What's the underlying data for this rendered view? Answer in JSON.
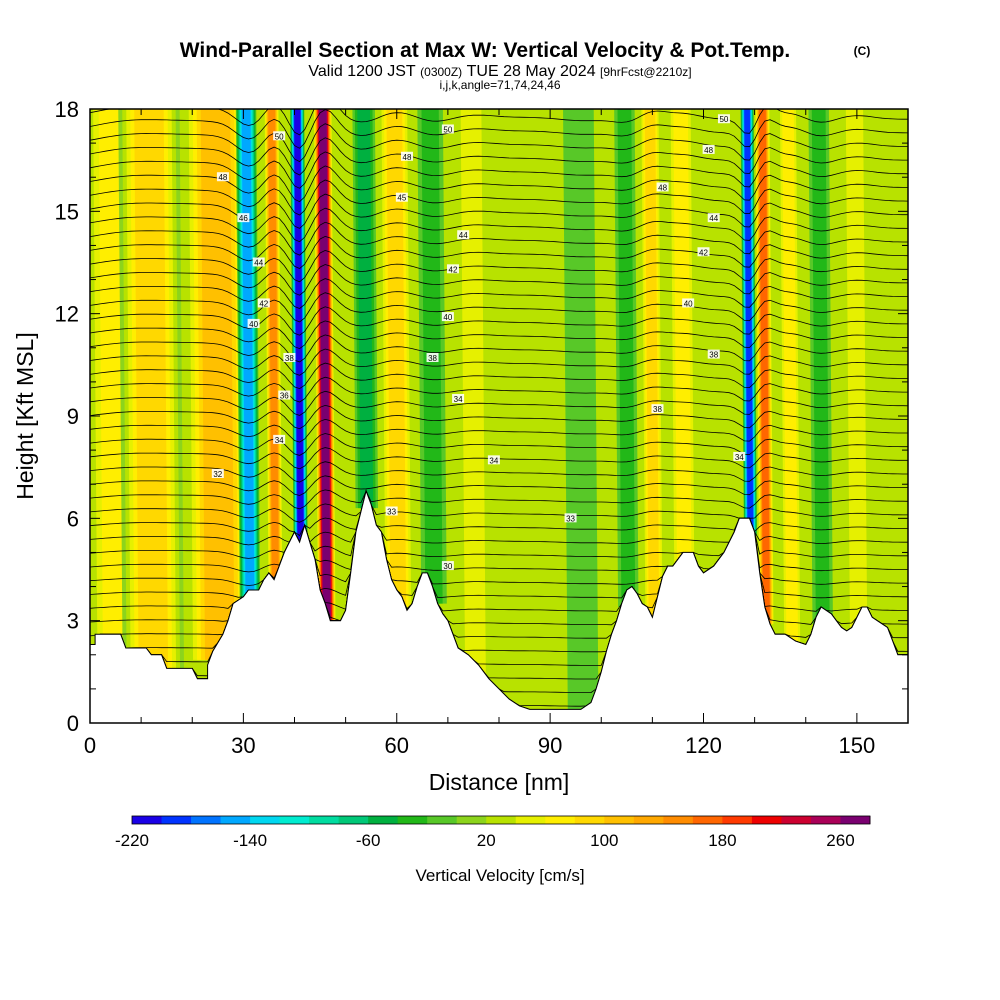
{
  "title": {
    "main": "Wind-Parallel Section at Max W: Vertical Velocity & Pot.Temp.",
    "mark": "(C)",
    "valid_prefix": "Valid 1200 JST",
    "valid_utc": "(0300Z)",
    "valid_date": "TUE 28 May 2024",
    "forecast": "[9hrFcst@2210z]",
    "indices": "i,j,k,angle=71,74,24,46"
  },
  "chart_data": {
    "type": "heatmap",
    "xlabel": "Distance [nm]",
    "ylabel": "Height [Kft MSL]",
    "xlim": [
      0,
      160
    ],
    "ylim": [
      0,
      18
    ],
    "x_ticks": [
      0,
      30,
      60,
      90,
      120,
      150
    ],
    "y_ticks": [
      0,
      3,
      6,
      9,
      12,
      15,
      18
    ],
    "colorbar": {
      "title": "Vertical Velocity [cm/s]",
      "min": -220,
      "max": 280,
      "step": 20,
      "labels": [
        -220,
        -140,
        -60,
        20,
        100,
        180,
        260
      ],
      "colors": [
        "#1a00e6",
        "#0033ff",
        "#0073ff",
        "#00a8ff",
        "#00d7f0",
        "#00ecd0",
        "#00dca0",
        "#00c878",
        "#00b040",
        "#22b818",
        "#58c828",
        "#8cd41c",
        "#b8e200",
        "#e6f000",
        "#ffee00",
        "#ffd800",
        "#ffc000",
        "#ffa800",
        "#ff8c00",
        "#ff6600",
        "#ff3a00",
        "#ee0000",
        "#cc0030",
        "#aa0058",
        "#7a0070"
      ]
    },
    "vertical_velocity_features": [
      {
        "x": 5,
        "width": 5,
        "value": 60
      },
      {
        "x": 12,
        "width": 6,
        "value": 90
      },
      {
        "x": 25,
        "width": 6,
        "value": 100
      },
      {
        "x": 31,
        "width": 2.0,
        "value": -150
      },
      {
        "x": 36,
        "width": 1.5,
        "value": 140
      },
      {
        "x": 41,
        "width": 1.4,
        "value": -210
      },
      {
        "x": 46,
        "width": 1.8,
        "value": 260
      },
      {
        "x": 54,
        "width": 2.2,
        "value": -50
      },
      {
        "x": 60,
        "width": 3.0,
        "value": 80
      },
      {
        "x": 67,
        "width": 2.5,
        "value": -40
      },
      {
        "x": 75,
        "width": 3.0,
        "value": 40
      },
      {
        "x": 85,
        "width": 5.0,
        "value": 20
      },
      {
        "x": 96,
        "width": 3.0,
        "value": -20
      },
      {
        "x": 105,
        "width": 2.0,
        "value": -40
      },
      {
        "x": 110,
        "width": 2.0,
        "value": 80
      },
      {
        "x": 116,
        "width": 2.5,
        "value": 60
      },
      {
        "x": 129,
        "width": 1.3,
        "value": -200
      },
      {
        "x": 132,
        "width": 1.5,
        "value": 160
      },
      {
        "x": 137,
        "width": 2.0,
        "value": 60
      },
      {
        "x": 143,
        "width": 2.0,
        "value": -40
      },
      {
        "x": 150,
        "width": 2.5,
        "value": 40
      }
    ],
    "potential_temperature": {
      "levels": [
        32,
        34,
        36,
        38,
        40,
        42,
        44,
        46,
        48,
        50
      ],
      "labels": [
        {
          "x": 25,
          "y": 7.3,
          "text": "32"
        },
        {
          "x": 37,
          "y": 8.3,
          "text": "34"
        },
        {
          "x": 38,
          "y": 9.6,
          "text": "36"
        },
        {
          "x": 39,
          "y": 10.7,
          "text": "38"
        },
        {
          "x": 32,
          "y": 11.7,
          "text": "40"
        },
        {
          "x": 34,
          "y": 12.3,
          "text": "42"
        },
        {
          "x": 33,
          "y": 13.5,
          "text": "44"
        },
        {
          "x": 30,
          "y": 14.8,
          "text": "46"
        },
        {
          "x": 26,
          "y": 16.0,
          "text": "48"
        },
        {
          "x": 37,
          "y": 17.2,
          "text": "50"
        },
        {
          "x": 59,
          "y": 6.2,
          "text": "33"
        },
        {
          "x": 70,
          "y": 4.6,
          "text": "30"
        },
        {
          "x": 72,
          "y": 9.5,
          "text": "34"
        },
        {
          "x": 79,
          "y": 7.7,
          "text": "34"
        },
        {
          "x": 67,
          "y": 10.7,
          "text": "38"
        },
        {
          "x": 70,
          "y": 11.9,
          "text": "40"
        },
        {
          "x": 71,
          "y": 13.3,
          "text": "42"
        },
        {
          "x": 73,
          "y": 14.3,
          "text": "44"
        },
        {
          "x": 61,
          "y": 15.4,
          "text": "45"
        },
        {
          "x": 62,
          "y": 16.6,
          "text": "48"
        },
        {
          "x": 70,
          "y": 17.4,
          "text": "50"
        },
        {
          "x": 94,
          "y": 6.0,
          "text": "33"
        },
        {
          "x": 111,
          "y": 9.2,
          "text": "38"
        },
        {
          "x": 122,
          "y": 10.8,
          "text": "38"
        },
        {
          "x": 117,
          "y": 12.3,
          "text": "40"
        },
        {
          "x": 120,
          "y": 13.8,
          "text": "42"
        },
        {
          "x": 122,
          "y": 14.8,
          "text": "44"
        },
        {
          "x": 112,
          "y": 15.7,
          "text": "48"
        },
        {
          "x": 121,
          "y": 16.8,
          "text": "48"
        },
        {
          "x": 124,
          "y": 17.7,
          "text": "50"
        },
        {
          "x": 127,
          "y": 7.8,
          "text": "34"
        }
      ]
    },
    "terrain": [
      [
        0,
        2.3
      ],
      [
        1,
        2.3
      ],
      [
        1,
        2.6
      ],
      [
        6,
        2.6
      ],
      [
        7,
        2.2
      ],
      [
        11,
        2.2
      ],
      [
        12,
        2.0
      ],
      [
        14,
        2.0
      ],
      [
        15,
        1.6
      ],
      [
        20,
        1.6
      ],
      [
        21,
        1.3
      ],
      [
        23,
        1.3
      ],
      [
        23,
        1.7
      ],
      [
        24,
        2.1
      ],
      [
        26,
        2.6
      ],
      [
        27,
        3.0
      ],
      [
        28,
        3.5
      ],
      [
        30,
        3.7
      ],
      [
        31,
        3.9
      ],
      [
        33,
        3.9
      ],
      [
        34,
        4.2
      ],
      [
        35,
        4.4
      ],
      [
        36,
        4.2
      ],
      [
        37,
        4.6
      ],
      [
        38,
        5.0
      ],
      [
        39,
        5.3
      ],
      [
        40,
        5.6
      ],
      [
        41,
        5.3
      ],
      [
        42,
        5.8
      ],
      [
        43,
        5.3
      ],
      [
        44,
        4.8
      ],
      [
        45,
        3.9
      ],
      [
        46,
        3.5
      ],
      [
        47,
        3.0
      ],
      [
        49,
        3.0
      ],
      [
        50,
        3.3
      ],
      [
        51,
        4.4
      ],
      [
        52,
        5.6
      ],
      [
        53,
        6.2
      ],
      [
        54,
        6.8
      ],
      [
        55,
        6.4
      ],
      [
        56,
        5.8
      ],
      [
        57,
        5.6
      ],
      [
        58,
        4.8
      ],
      [
        59,
        4.2
      ],
      [
        60,
        3.9
      ],
      [
        61,
        3.7
      ],
      [
        62,
        3.3
      ],
      [
        63,
        3.5
      ],
      [
        64,
        4.0
      ],
      [
        65,
        4.4
      ],
      [
        66,
        4.4
      ],
      [
        67,
        4.0
      ],
      [
        68,
        3.5
      ],
      [
        69,
        3.2
      ],
      [
        70,
        3.0
      ],
      [
        71,
        2.6
      ],
      [
        72,
        2.2
      ],
      [
        74,
        2.0
      ],
      [
        76,
        1.7
      ],
      [
        78,
        1.3
      ],
      [
        80,
        1.0
      ],
      [
        82,
        0.7
      ],
      [
        84,
        0.5
      ],
      [
        86,
        0.4
      ],
      [
        88,
        0.4
      ],
      [
        90,
        0.4
      ],
      [
        92,
        0.4
      ],
      [
        94,
        0.4
      ],
      [
        96,
        0.4
      ],
      [
        98,
        0.6
      ],
      [
        99,
        1.0
      ],
      [
        100,
        1.5
      ],
      [
        101,
        2.1
      ],
      [
        102,
        2.6
      ],
      [
        103,
        3.0
      ],
      [
        104,
        3.5
      ],
      [
        105,
        3.9
      ],
      [
        106,
        4.0
      ],
      [
        107,
        3.8
      ],
      [
        108,
        3.5
      ],
      [
        109,
        3.4
      ],
      [
        110,
        3.1
      ],
      [
        111,
        3.7
      ],
      [
        112,
        4.3
      ],
      [
        113,
        4.6
      ],
      [
        114,
        4.6
      ],
      [
        116,
        5.0
      ],
      [
        118,
        5.0
      ],
      [
        119,
        4.6
      ],
      [
        120,
        4.4
      ],
      [
        122,
        4.6
      ],
      [
        124,
        5.0
      ],
      [
        126,
        5.6
      ],
      [
        127,
        6.0
      ],
      [
        129,
        6.0
      ],
      [
        130,
        5.6
      ],
      [
        131,
        4.4
      ],
      [
        132,
        3.4
      ],
      [
        133,
        2.9
      ],
      [
        134,
        2.6
      ],
      [
        136,
        2.6
      ],
      [
        138,
        2.4
      ],
      [
        140,
        2.3
      ],
      [
        141,
        2.6
      ],
      [
        142,
        3.1
      ],
      [
        143,
        3.4
      ],
      [
        145,
        3.2
      ],
      [
        146,
        3.0
      ],
      [
        147,
        2.8
      ],
      [
        148,
        2.7
      ],
      [
        149,
        2.8
      ],
      [
        150,
        3.1
      ],
      [
        151,
        3.4
      ],
      [
        152,
        3.4
      ],
      [
        153,
        3.1
      ],
      [
        154,
        3.0
      ],
      [
        156,
        2.8
      ],
      [
        157,
        2.4
      ],
      [
        158,
        2.0
      ],
      [
        160,
        2.0
      ]
    ]
  }
}
